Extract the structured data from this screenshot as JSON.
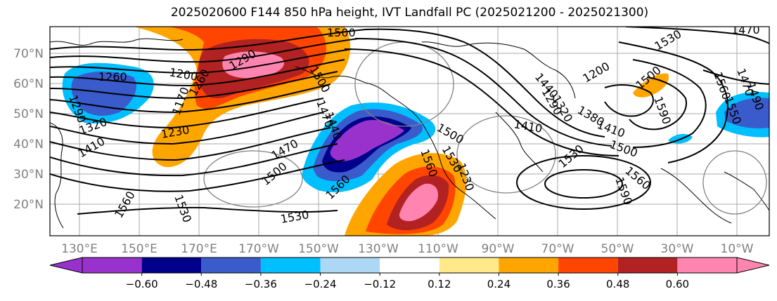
{
  "title": "2025020600 F144 850 hPa height, IVT Landfall PC (2025021200 - 2025021300)",
  "map": {
    "lat_labels": [
      "70°N",
      "60°N",
      "50°N",
      "40°N",
      "30°N",
      "20°N"
    ],
    "lon_labels": [
      "130°E",
      "150°E",
      "170°E",
      "170°W",
      "150°W",
      "130°W",
      "110°W",
      "90°W",
      "70°W",
      "50°W",
      "30°W",
      "10°W"
    ],
    "contour_labels": [
      "1500",
      "1470",
      "1530",
      "1260",
      "1200",
      "1290",
      "1170",
      "1230",
      "1320",
      "1410",
      "1440",
      "1470",
      "1500",
      "1560",
      "1530",
      "1530",
      "1560",
      "1500",
      "1410",
      "1530",
      "1500",
      "1560",
      "1590",
      "1530",
      "1500",
      "1560",
      "1200",
      "1560",
      "1290",
      "1320",
      "1380",
      "1410",
      "1590",
      "1470",
      "1290",
      "1260",
      "1230",
      "1550",
      "1500",
      "1470",
      "1440",
      "1490"
    ]
  },
  "colorbar": {
    "ticks": [
      "−0.60",
      "−0.48",
      "−0.36",
      "−0.24",
      "−0.12",
      "0.12",
      "0.24",
      "0.36",
      "0.48",
      "0.60"
    ],
    "colors": [
      "#9932cc",
      "#00008b",
      "#3a5bcc",
      "#00bfff",
      "#add8f5",
      "#ffffff",
      "#ffe98a",
      "#ffa500",
      "#ff4500",
      "#b22222",
      "#ff85b0"
    ]
  }
}
